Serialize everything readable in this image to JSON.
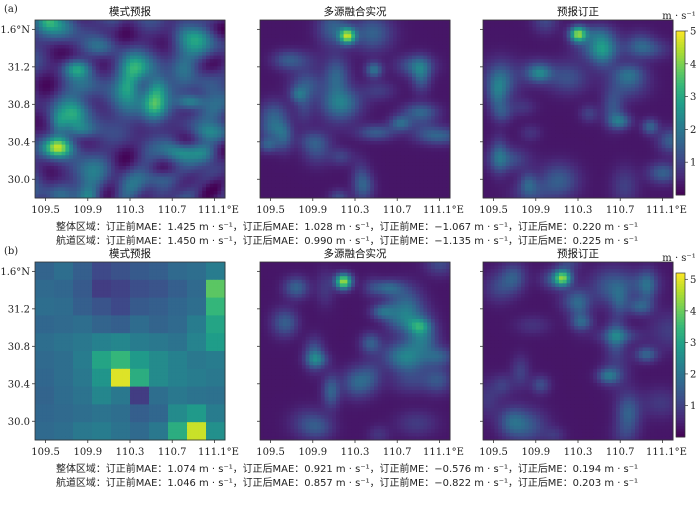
{
  "chart_data": [
    {
      "label": "(a)",
      "type": "heatmap",
      "panels": [
        {
          "title": "模式预报",
          "style": "fine"
        },
        {
          "title": "多源融合实况",
          "style": "smooth"
        },
        {
          "title": "预报订正",
          "style": "smooth"
        }
      ],
      "x_ticks": [
        "109.5",
        "109.9",
        "110.3",
        "110.7",
        "111.1°E"
      ],
      "y_ticks": [
        "31.6°N",
        "31.2",
        "30.8",
        "30.4",
        "30.0"
      ],
      "xlim": [
        109.4,
        111.2
      ],
      "ylim": [
        29.8,
        31.7
      ],
      "colorbar": {
        "unit": "m · s⁻¹",
        "range": [
          0,
          5
        ],
        "ticks": [
          "5",
          "4",
          "3",
          "2",
          "1"
        ]
      },
      "stats": [
        "整体区域：订正前MAE：1.425 m · s⁻¹，订正后MAE：1.028 m · s⁻¹，订正前ME：−1.067 m · s⁻¹，订正后ME：0.220 m · s⁻¹",
        "航道区域：订正前MAE：1.450 m · s⁻¹，订正后MAE：0.990 m · s⁻¹，订正前ME：−1.135 m · s⁻¹，订正后ME：0.225 m · s⁻¹"
      ]
    },
    {
      "label": "(b)",
      "type": "heatmap",
      "panels": [
        {
          "title": "模式预报",
          "style": "coarse"
        },
        {
          "title": "多源融合实况",
          "style": "smooth"
        },
        {
          "title": "预报订正",
          "style": "smooth"
        }
      ],
      "x_ticks": [
        "109.5",
        "109.9",
        "110.3",
        "110.7",
        "111.1°E"
      ],
      "y_ticks": [
        "31.6°N",
        "31.2",
        "30.8",
        "30.4",
        "30.0"
      ],
      "xlim": [
        109.4,
        111.2
      ],
      "ylim": [
        29.8,
        31.7
      ],
      "colorbar": {
        "unit": "m · s⁻¹",
        "range": [
          0,
          5.2
        ],
        "ticks": [
          "5",
          "4",
          "3",
          "2",
          "1"
        ]
      },
      "stats": [
        "整体区域：订正前MAE：1.074 m · s⁻¹，订正后MAE：0.921 m · s⁻¹，订正前ME：−0.576 m · s⁻¹，订正后ME：0.194 m · s⁻¹",
        "航道区域：订正前MAE：1.046 m · s⁻¹，订正后MAE：0.857 m · s⁻¹，订正前ME：−0.822 m · s⁻¹，订正后ME：0.203 m · s⁻¹"
      ]
    }
  ]
}
